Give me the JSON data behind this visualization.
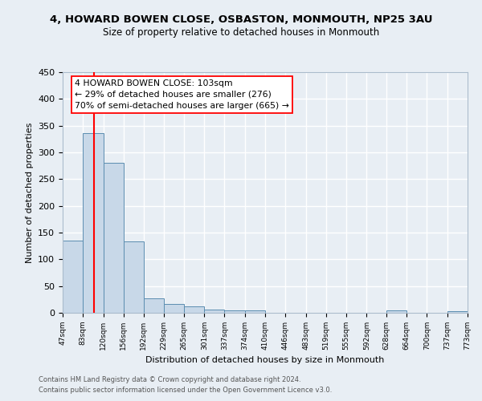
{
  "title": "4, HOWARD BOWEN CLOSE, OSBASTON, MONMOUTH, NP25 3AU",
  "subtitle": "Size of property relative to detached houses in Monmouth",
  "xlabel": "Distribution of detached houses by size in Monmouth",
  "ylabel": "Number of detached properties",
  "bar_color": "#c8d8e8",
  "bar_edge_color": "#5b8db0",
  "background_color": "#e8eef4",
  "grid_color": "#ffffff",
  "red_line_x": 103,
  "annotation_title": "4 HOWARD BOWEN CLOSE: 103sqm",
  "annotation_line1": "← 29% of detached houses are smaller (276)",
  "annotation_line2": "70% of semi-detached houses are larger (665) →",
  "footer1": "Contains HM Land Registry data © Crown copyright and database right 2024.",
  "footer2": "Contains public sector information licensed under the Open Government Licence v3.0.",
  "bin_edges": [
    47,
    83,
    120,
    156,
    192,
    229,
    265,
    301,
    337,
    374,
    410,
    446,
    483,
    519,
    555,
    592,
    628,
    664,
    700,
    737,
    773
  ],
  "bar_heights": [
    135,
    336,
    281,
    134,
    27,
    17,
    12,
    6,
    5,
    5,
    0,
    0,
    0,
    0,
    0,
    0,
    4,
    0,
    0,
    3
  ],
  "ylim": [
    0,
    450
  ],
  "yticks": [
    0,
    50,
    100,
    150,
    200,
    250,
    300,
    350,
    400,
    450
  ]
}
